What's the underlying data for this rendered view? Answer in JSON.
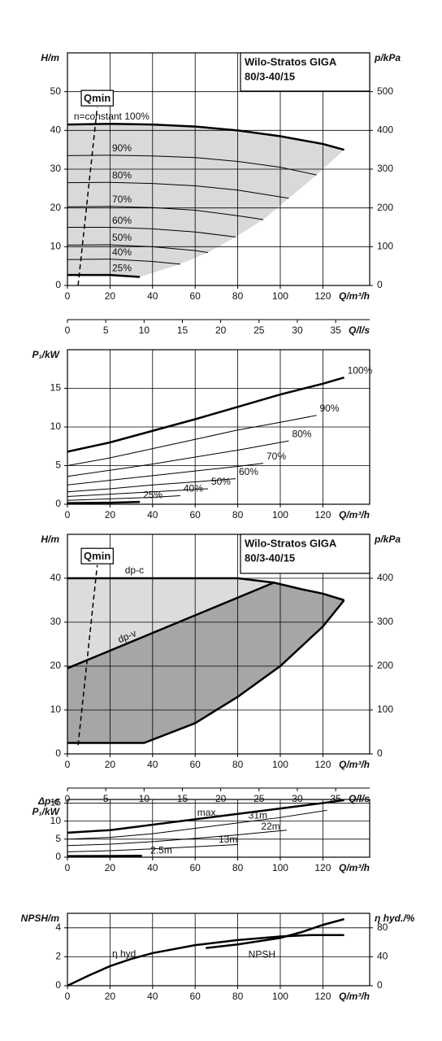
{
  "chart_data": [
    {
      "type": "line",
      "title": "Wilo-Stratos GIGA",
      "subtitle": "80/3-40/15",
      "xlabel": "Q/m³/h",
      "xlim": [
        0,
        142
      ],
      "xticks": [
        0,
        20,
        40,
        60,
        80,
        100,
        120
      ],
      "x2label": "Q/l/s",
      "x2lim": [
        0,
        39.44
      ],
      "x2ticks": [
        0,
        5,
        10,
        15,
        20,
        25,
        30,
        35
      ],
      "ylabel": "H/m",
      "ylim": [
        0,
        60
      ],
      "yticks": [
        0,
        10,
        20,
        30,
        40,
        50
      ],
      "y2label": "p/kPa",
      "y2lim": [
        0,
        600
      ],
      "y2ticks": [
        0,
        100,
        200,
        300,
        400,
        500
      ],
      "grid": true,
      "shade_color": "#d9d9d9",
      "series": [
        {
          "name": "n=constant 100%",
          "color": "#000000",
          "width": 2.5,
          "x": [
            0,
            20,
            40,
            60,
            80,
            100,
            120,
            130
          ],
          "values": [
            41.5,
            41.7,
            41.5,
            41,
            40,
            38.5,
            36.5,
            35
          ]
        },
        {
          "name": "90%",
          "color": "#000000",
          "width": 1,
          "x": [
            0,
            20,
            40,
            60,
            80,
            100,
            117
          ],
          "values": [
            33.5,
            33.6,
            33.4,
            33,
            32,
            30.5,
            28.5
          ]
        },
        {
          "name": "80%",
          "color": "#000000",
          "width": 1,
          "x": [
            0,
            20,
            40,
            60,
            80,
            104
          ],
          "values": [
            26.5,
            26.6,
            26.3,
            25.7,
            24.6,
            22.5
          ]
        },
        {
          "name": "70%",
          "color": "#000000",
          "width": 1,
          "x": [
            0,
            20,
            40,
            60,
            80,
            92
          ],
          "values": [
            20.3,
            20.4,
            20.1,
            19.4,
            18,
            17
          ]
        },
        {
          "name": "60%",
          "color": "#000000",
          "width": 1,
          "x": [
            0,
            20,
            40,
            60,
            79
          ],
          "values": [
            15,
            15,
            14.6,
            13.8,
            12.5
          ]
        },
        {
          "name": "50%",
          "color": "#000000",
          "width": 1,
          "x": [
            0,
            20,
            40,
            60,
            66
          ],
          "values": [
            10.4,
            10.5,
            10,
            9,
            8.5
          ]
        },
        {
          "name": "40%",
          "color": "#000000",
          "width": 1,
          "x": [
            0,
            20,
            40,
            53
          ],
          "values": [
            6.7,
            6.8,
            6.2,
            5.5
          ]
        },
        {
          "name": "25%",
          "color": "#000000",
          "width": 2.5,
          "x": [
            0,
            20,
            34
          ],
          "values": [
            2.7,
            2.7,
            2.2
          ]
        },
        {
          "name": "Qmin",
          "color": "#000000",
          "width": 1.5,
          "dashed": true,
          "x": [
            5,
            14
          ],
          "values": [
            0,
            46
          ]
        }
      ]
    },
    {
      "type": "line",
      "xlabel": "Q/m³/h",
      "xlim": [
        0,
        142
      ],
      "xticks": [
        0,
        20,
        40,
        60,
        80,
        100,
        120
      ],
      "ylabel": "P₁/kW",
      "ylim": [
        0,
        20
      ],
      "yticks": [
        0,
        5,
        10,
        15
      ],
      "grid": true,
      "series": [
        {
          "name": "100%",
          "color": "#000000",
          "width": 2.5,
          "x": [
            0,
            20,
            40,
            60,
            80,
            100,
            120,
            130
          ],
          "values": [
            6.8,
            8,
            9.5,
            11,
            12.6,
            14.2,
            15.6,
            16.4
          ]
        },
        {
          "name": "90%",
          "color": "#000000",
          "width": 1,
          "x": [
            0,
            20,
            40,
            60,
            80,
            100,
            117
          ],
          "values": [
            5,
            6,
            7.2,
            8.4,
            9.6,
            10.6,
            11.5
          ]
        },
        {
          "name": "80%",
          "color": "#000000",
          "width": 1,
          "x": [
            0,
            20,
            40,
            60,
            80,
            104
          ],
          "values": [
            3.6,
            4.4,
            5.2,
            6.1,
            7,
            8.2
          ]
        },
        {
          "name": "70%",
          "color": "#000000",
          "width": 1,
          "x": [
            0,
            20,
            40,
            60,
            80,
            92
          ],
          "values": [
            2.5,
            3.1,
            3.7,
            4.3,
            4.9,
            5.3
          ]
        },
        {
          "name": "60%",
          "color": "#000000",
          "width": 1,
          "x": [
            0,
            20,
            40,
            60,
            79
          ],
          "values": [
            1.6,
            2,
            2.5,
            2.9,
            3.3
          ]
        },
        {
          "name": "50%",
          "color": "#000000",
          "width": 1,
          "x": [
            0,
            20,
            40,
            66
          ],
          "values": [
            1,
            1.3,
            1.6,
            2
          ]
        },
        {
          "name": "40%",
          "color": "#000000",
          "width": 1,
          "x": [
            0,
            20,
            40,
            53
          ],
          "values": [
            0.5,
            0.7,
            0.9,
            1.1
          ]
        },
        {
          "name": "25%",
          "color": "#000000",
          "width": 2.5,
          "x": [
            0,
            20,
            34
          ],
          "values": [
            0.15,
            0.2,
            0.3
          ]
        }
      ]
    },
    {
      "type": "line",
      "title": "Wilo-Stratos GIGA",
      "subtitle": "80/3-40/15",
      "xlabel": "Q/m³/h",
      "xlim": [
        0,
        142
      ],
      "xticks": [
        0,
        20,
        40,
        60,
        80,
        100,
        120
      ],
      "x2label": "Q/l/s",
      "x2lim": [
        0,
        39.44
      ],
      "x2ticks": [
        0,
        5,
        10,
        15,
        20,
        25,
        30,
        35
      ],
      "ylabel": "H/m",
      "ylim": [
        0,
        50
      ],
      "yticks": [
        0,
        10,
        20,
        30,
        40
      ],
      "y2label": "p/kPa",
      "y2lim": [
        0,
        500
      ],
      "y2ticks": [
        0,
        100,
        200,
        300,
        400
      ],
      "grid": true,
      "shade_colors": [
        "#dcdcdc",
        "#a6a6a6"
      ],
      "series": [
        {
          "name": "dp-c",
          "color": "#000000",
          "width": 2.5,
          "x": [
            0,
            80,
            97,
            110,
            120,
            130
          ],
          "values": [
            40,
            40,
            39,
            37.5,
            36.5,
            35
          ]
        },
        {
          "name": "dp-v",
          "color": "#000000",
          "width": 2.5,
          "x": [
            0,
            97
          ],
          "values": [
            19.5,
            39
          ]
        },
        {
          "color": "#000000",
          "width": 2.5,
          "x": [
            0,
            36,
            60,
            80,
            100,
            120,
            130
          ],
          "values": [
            2.5,
            2.5,
            7,
            13,
            20,
            29,
            35
          ]
        },
        {
          "name": "Qmin",
          "color": "#000000",
          "width": 1.5,
          "dashed": true,
          "x": [
            5,
            14
          ],
          "values": [
            2,
            43
          ]
        }
      ]
    },
    {
      "type": "line",
      "xlabel": "Q/m³/h",
      "xlim": [
        0,
        142
      ],
      "xticks": [
        0,
        20,
        40,
        60,
        80,
        100,
        120
      ],
      "ylabel_top": "Δp-c",
      "ylabel": "P₁/kW",
      "ylim": [
        0,
        16
      ],
      "yticks": [
        0,
        5,
        10,
        15
      ],
      "grid": true,
      "series": [
        {
          "name": "max.",
          "color": "#000000",
          "width": 2.5,
          "x": [
            0,
            20,
            40,
            60,
            80,
            100,
            120,
            130
          ],
          "values": [
            6.8,
            7.5,
            9,
            10.5,
            12,
            13.5,
            15,
            15.8
          ]
        },
        {
          "name": "31m",
          "color": "#000000",
          "width": 1,
          "x": [
            0,
            20,
            40,
            60,
            80,
            100,
            122
          ],
          "values": [
            5,
            5.5,
            6.5,
            8,
            9.5,
            11,
            13
          ]
        },
        {
          "name": "22m",
          "color": "#000000",
          "width": 1,
          "x": [
            0,
            20,
            40,
            60,
            80,
            103
          ],
          "values": [
            3.2,
            3.6,
            4.3,
            5.2,
            6.2,
            7.5
          ]
        },
        {
          "name": "13m",
          "color": "#000000",
          "width": 1,
          "x": [
            0,
            20,
            40,
            60,
            80
          ],
          "values": [
            1.5,
            1.8,
            2.3,
            2.9,
            3.5
          ]
        },
        {
          "name": "2.5m",
          "color": "#000000",
          "width": 2.5,
          "x": [
            0,
            20,
            35
          ],
          "values": [
            0.3,
            0.35,
            0.4
          ]
        }
      ]
    },
    {
      "type": "line",
      "xlabel": "Q/m³/h",
      "xlim": [
        0,
        142
      ],
      "xticks": [
        0,
        20,
        40,
        60,
        80,
        100,
        120
      ],
      "ylabel": "NPSH/m",
      "ylim": [
        0,
        5
      ],
      "yticks": [
        0,
        2,
        4
      ],
      "y2label": "η hyd./%",
      "y2lim": [
        0,
        100
      ],
      "y2ticks": [
        0,
        40,
        80
      ],
      "grid": true,
      "series": [
        {
          "name": "η hyd.",
          "color": "#000000",
          "width": 2.5,
          "axis": "y2",
          "x": [
            0,
            10,
            20,
            30,
            40,
            60,
            80,
            100,
            115,
            130
          ],
          "values": [
            0,
            14,
            27,
            37,
            45,
            56,
            63,
            68,
            70,
            70
          ]
        },
        {
          "name": "NPSH",
          "color": "#000000",
          "width": 2.5,
          "x": [
            65,
            80,
            100,
            110,
            120,
            130
          ],
          "values": [
            2.6,
            2.85,
            3.3,
            3.7,
            4.2,
            4.6
          ]
        }
      ]
    }
  ]
}
